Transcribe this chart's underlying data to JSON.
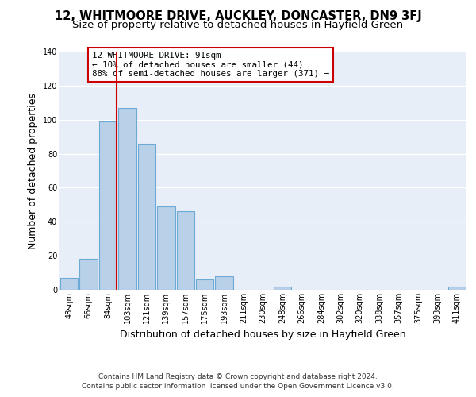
{
  "title": "12, WHITMOORE DRIVE, AUCKLEY, DONCASTER, DN9 3FJ",
  "subtitle": "Size of property relative to detached houses in Hayfield Green",
  "xlabel": "Distribution of detached houses by size in Hayfield Green",
  "ylabel": "Number of detached properties",
  "bar_labels": [
    "48sqm",
    "66sqm",
    "84sqm",
    "103sqm",
    "121sqm",
    "139sqm",
    "157sqm",
    "175sqm",
    "193sqm",
    "211sqm",
    "230sqm",
    "248sqm",
    "266sqm",
    "284sqm",
    "302sqm",
    "320sqm",
    "338sqm",
    "357sqm",
    "375sqm",
    "393sqm",
    "411sqm"
  ],
  "bar_values": [
    7,
    18,
    99,
    107,
    86,
    49,
    46,
    6,
    8,
    0,
    0,
    2,
    0,
    0,
    0,
    0,
    0,
    0,
    0,
    0,
    2
  ],
  "bar_color": "#b8d0e8",
  "bar_edge_color": "#6aaad4",
  "reference_line_color": "#cc0000",
  "annotation_text": "12 WHITMOORE DRIVE: 91sqm\n← 10% of detached houses are smaller (44)\n88% of semi-detached houses are larger (371) →",
  "annotation_box_color": "#ffffff",
  "annotation_box_edge": "#cc0000",
  "ylim": [
    0,
    140
  ],
  "yticks": [
    0,
    20,
    40,
    60,
    80,
    100,
    120,
    140
  ],
  "footer1": "Contains HM Land Registry data © Crown copyright and database right 2024.",
  "footer2": "Contains public sector information licensed under the Open Government Licence v3.0.",
  "background_color": "#e8eef8",
  "fig_background": "#ffffff",
  "grid_color": "#ffffff",
  "title_fontsize": 10.5,
  "subtitle_fontsize": 9.5,
  "axis_label_fontsize": 9,
  "tick_fontsize": 7,
  "footer_fontsize": 6.5
}
